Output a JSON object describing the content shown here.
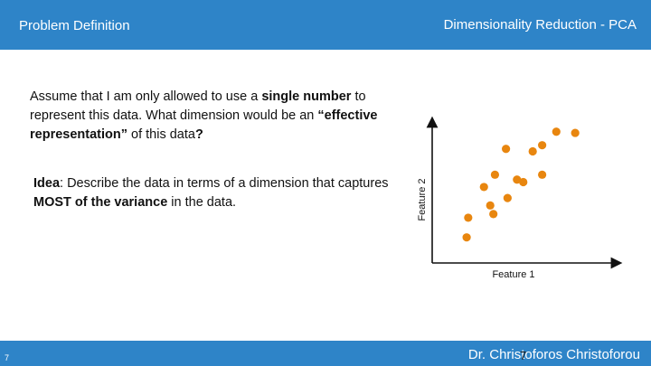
{
  "header": {
    "left_title": "Problem Definition",
    "right_title": "Dimensionality Reduction - PCA"
  },
  "body": {
    "para1": [
      {
        "text": "Assume that I am only allowed to use a ",
        "bold": false
      },
      {
        "text": "single number",
        "bold": true
      },
      {
        "text": " to represent this data. What dimension would be an ",
        "bold": false
      },
      {
        "text": "“effective representation”",
        "bold": true
      },
      {
        "text": " of this data",
        "bold": false
      },
      {
        "text": "?",
        "bold": true
      }
    ],
    "para2": [
      {
        "text": "Idea",
        "bold": true
      },
      {
        "text": ": Describe the data in terms of a dimension that captures ",
        "bold": false
      },
      {
        "text": "MOST of the variance",
        "bold": true
      },
      {
        "text": " in the data.",
        "bold": false
      }
    ]
  },
  "chart_data": {
    "type": "scatter",
    "xlabel": "Feature 1",
    "ylabel": "Feature 2",
    "point_color": "#e8860f",
    "xlim": [
      0,
      10
    ],
    "ylim": [
      0,
      10
    ],
    "points": [
      {
        "x": 1.5,
        "y": 1.2
      },
      {
        "x": 1.6,
        "y": 2.8
      },
      {
        "x": 2.6,
        "y": 5.3
      },
      {
        "x": 3.0,
        "y": 3.8
      },
      {
        "x": 3.2,
        "y": 3.1
      },
      {
        "x": 3.3,
        "y": 6.3
      },
      {
        "x": 4.0,
        "y": 8.4
      },
      {
        "x": 4.1,
        "y": 4.4
      },
      {
        "x": 4.7,
        "y": 5.9
      },
      {
        "x": 5.1,
        "y": 5.7
      },
      {
        "x": 5.7,
        "y": 8.2
      },
      {
        "x": 6.3,
        "y": 8.7
      },
      {
        "x": 6.3,
        "y": 6.3
      },
      {
        "x": 7.2,
        "y": 9.8
      },
      {
        "x": 8.4,
        "y": 9.7
      }
    ]
  },
  "footer": {
    "slide_number": "7",
    "author": "Dr. Christoforos Christoforou",
    "page_mark": "7"
  }
}
